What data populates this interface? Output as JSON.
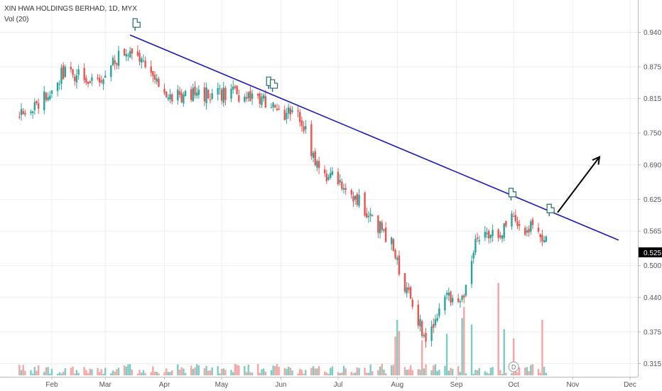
{
  "header": {
    "symbol_line": "XIN HWA HOLDINGS BERHAD, 1D, MYX",
    "volume_label": "Vol (20)"
  },
  "colors": {
    "up": "#26a69a",
    "down": "#ef5350",
    "up_volume": "#7fccc3",
    "down_volume": "#f4a5a5",
    "trendline": "#1a1ab8",
    "arrow": "#000000",
    "price_tag_bg": "#000000",
    "price_tag_text": "#ffffff",
    "grid": "#eeeeee"
  },
  "chart_data": {
    "type": "candlestick",
    "title": "XIN HWA HOLDINGS BERHAD, 1D, MYX",
    "x_ticks": [
      "Feb",
      "Mar",
      "Apr",
      "May",
      "Jun",
      "Jul",
      "Aug",
      "Sep",
      "Oct",
      "Nov",
      "Dec"
    ],
    "y_ticks": [
      "0.940",
      "0.875",
      "0.815",
      "0.750",
      "0.690",
      "0.625",
      "0.565",
      "0.500",
      "0.440",
      "0.375",
      "0.315"
    ],
    "y_range": [
      0.29,
      1.0
    ],
    "last_price": "0.525",
    "volume_indicator": "Vol (20)",
    "dividend_marker": "D",
    "grid": true,
    "segments": [
      {
        "start": "2019-01-15",
        "end": "2019-01-24",
        "from": 0.78,
        "to": 0.8
      },
      {
        "start": "2019-01-24",
        "end": "2019-02-08",
        "from": 0.8,
        "to": 0.87
      },
      {
        "start": "2019-02-08",
        "end": "2019-02-25",
        "from": 0.87,
        "to": 0.84
      },
      {
        "start": "2019-02-25",
        "end": "2019-03-11",
        "from": 0.84,
        "to": 0.91
      },
      {
        "start": "2019-03-11",
        "end": "2019-03-22",
        "from": 0.91,
        "to": 0.87
      },
      {
        "start": "2019-03-22",
        "end": "2019-04-05",
        "from": 0.87,
        "to": 0.82
      },
      {
        "start": "2019-04-05",
        "end": "2019-05-06",
        "from": 0.82,
        "to": 0.825
      },
      {
        "start": "2019-05-06",
        "end": "2019-05-20",
        "from": 0.825,
        "to": 0.815
      },
      {
        "start": "2019-05-20",
        "end": "2019-05-31",
        "from": 0.815,
        "to": 0.79
      },
      {
        "start": "2019-05-31",
        "end": "2019-06-11",
        "from": 0.79,
        "to": 0.78
      },
      {
        "start": "2019-06-11",
        "end": "2019-06-21",
        "from": 0.78,
        "to": 0.68
      },
      {
        "start": "2019-06-21",
        "end": "2019-07-05",
        "from": 0.68,
        "to": 0.65
      },
      {
        "start": "2019-07-05",
        "end": "2019-07-19",
        "from": 0.65,
        "to": 0.59
      },
      {
        "start": "2019-07-19",
        "end": "2019-07-29",
        "from": 0.59,
        "to": 0.54
      },
      {
        "start": "2019-07-29",
        "end": "2019-08-05",
        "from": 0.54,
        "to": 0.46
      },
      {
        "start": "2019-08-05",
        "end": "2019-08-16",
        "from": 0.46,
        "to": 0.36
      },
      {
        "start": "2019-08-16",
        "end": "2019-08-26",
        "from": 0.36,
        "to": 0.44
      },
      {
        "start": "2019-08-26",
        "end": "2019-09-04",
        "from": 0.44,
        "to": 0.43
      },
      {
        "start": "2019-09-04",
        "end": "2019-09-12",
        "from": 0.43,
        "to": 0.56
      },
      {
        "start": "2019-09-12",
        "end": "2019-09-24",
        "from": 0.56,
        "to": 0.56
      },
      {
        "start": "2019-09-24",
        "end": "2019-09-30",
        "from": 0.56,
        "to": 0.61
      },
      {
        "start": "2019-09-30",
        "end": "2019-10-05",
        "from": 0.61,
        "to": 0.55
      },
      {
        "start": "2019-10-05",
        "end": "2019-10-11",
        "from": 0.55,
        "to": 0.58
      },
      {
        "start": "2019-10-11",
        "end": "2019-10-17",
        "from": 0.58,
        "to": 0.55
      },
      {
        "start": "2019-10-17",
        "end": "2019-10-21",
        "from": 0.55,
        "to": 0.59
      }
    ],
    "volume_spikes": [
      {
        "date": "2019-07-31",
        "level": 0.42
      },
      {
        "date": "2019-08-01",
        "level": 0.6
      },
      {
        "date": "2019-08-02",
        "level": 0.48
      },
      {
        "date": "2019-08-14",
        "level": 0.38
      },
      {
        "date": "2019-08-27",
        "level": 0.45
      },
      {
        "date": "2019-09-04",
        "level": 0.62
      },
      {
        "date": "2019-09-05",
        "level": 0.74
      },
      {
        "date": "2019-09-09",
        "level": 0.55
      },
      {
        "date": "2019-09-23",
        "level": 1.0
      },
      {
        "date": "2019-09-26",
        "level": 0.5
      },
      {
        "date": "2019-10-01",
        "level": 0.4
      },
      {
        "date": "2019-10-16",
        "level": 0.6
      },
      {
        "date": "2019-10-21",
        "level": 0.71
      }
    ],
    "trendline": {
      "start": "2019-03-14",
      "start_price": 0.935,
      "end": "2019-11-25",
      "end_price": 0.548
    },
    "arrow": {
      "from_date": "2019-10-24",
      "from_price": 0.6,
      "to_date": "2019-11-15",
      "to_price": 0.705
    },
    "markers": [
      {
        "date": "2019-03-17",
        "price": 0.955
      },
      {
        "date": "2019-05-26",
        "price": 0.845
      },
      {
        "date": "2019-05-28",
        "price": 0.84
      },
      {
        "date": "2019-09-30",
        "price": 0.635
      },
      {
        "date": "2019-10-20",
        "price": 0.605
      }
    ]
  }
}
